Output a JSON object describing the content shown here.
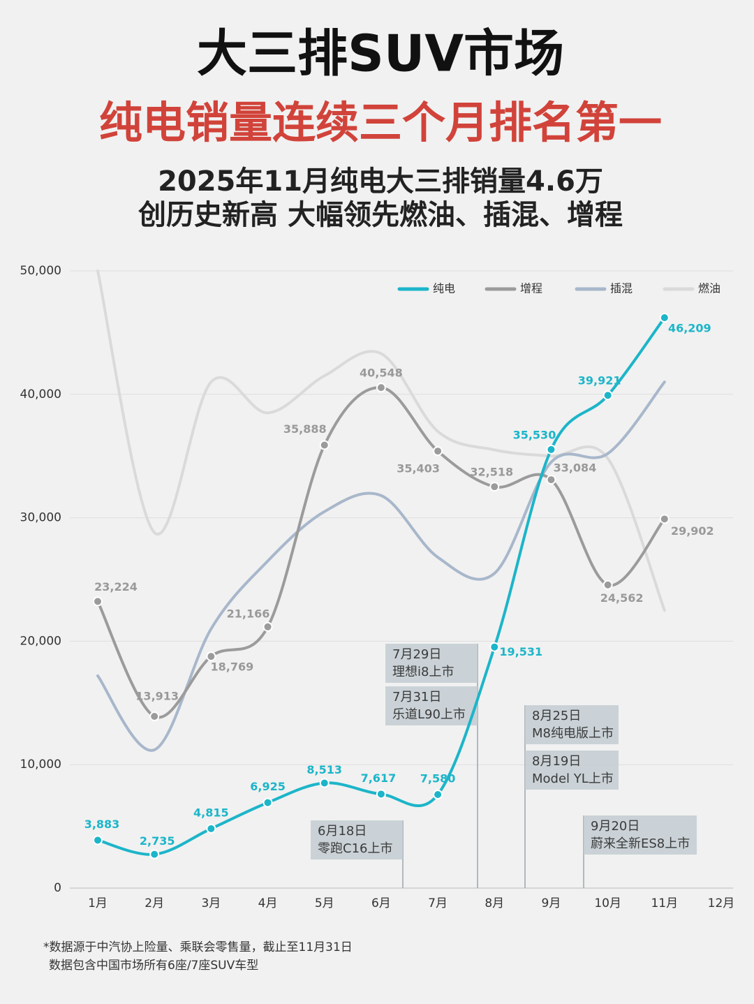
{
  "chart_data": {
    "type": "line",
    "title": "大三排SUV市场",
    "subtitle": "纯电销量连续三个月排名第一",
    "description": [
      "2025年11月纯电大三排销量4.6万",
      "创历史新高 大幅领先燃油、插混、增程"
    ],
    "categories": [
      "1月",
      "2月",
      "3月",
      "4月",
      "5月",
      "6月",
      "7月",
      "8月",
      "9月",
      "10月",
      "11月",
      "12月"
    ],
    "ylim": [
      0,
      50000
    ],
    "yticks": [
      0,
      {
        "value": 10000,
        "label": "10,000"
      },
      {
        "value": 20000,
        "label": "20,000"
      },
      {
        "value": 30000,
        "label": "30,000"
      },
      {
        "value": 40000,
        "label": "40,000"
      },
      {
        "value": 50000,
        "label": "50,000"
      }
    ],
    "grid": true,
    "legend": "top-right",
    "series": [
      {
        "name": "纯电",
        "color": "#1cb5c9",
        "values": [
          3883,
          2735,
          4815,
          6925,
          8513,
          7617,
          7580,
          19531,
          35530,
          39921,
          46209,
          null
        ],
        "value_labels": [
          "3,883",
          "2,735",
          "4,815",
          "6,925",
          "8,513",
          "7,617",
          "7,580",
          "19,531",
          "35,530",
          "39,921",
          "46,209",
          null
        ]
      },
      {
        "name": "增程",
        "color": "#9b9b9b",
        "values": [
          23224,
          13913,
          18769,
          21166,
          35888,
          40548,
          35403,
          32518,
          33084,
          24562,
          29902,
          null
        ],
        "value_labels": [
          "23,224",
          "13,913",
          "18,769",
          "21,166",
          "35,888",
          "40,548",
          "35,403",
          "32,518",
          "33,084",
          "24,562",
          "29,902",
          null
        ]
      },
      {
        "name": "插混",
        "color": "#a8b7cb",
        "values": [
          17200,
          11200,
          21000,
          26500,
          30500,
          31800,
          26800,
          25500,
          34500,
          35200,
          41000,
          null
        ]
      },
      {
        "name": "燃油",
        "color": "#dadada",
        "values": [
          50000,
          28800,
          41000,
          38500,
          41500,
          43300,
          37000,
          35500,
          35000,
          34800,
          22500,
          null
        ]
      }
    ],
    "annotations": [
      {
        "lines": [
          "6月18日",
          "零跑C16上市"
        ]
      },
      {
        "lines": [
          "7月29日",
          "理想i8上市"
        ]
      },
      {
        "lines": [
          "7月31日",
          "乐道L90上市"
        ]
      },
      {
        "lines": [
          "8月25日",
          "M8纯电版上市"
        ]
      },
      {
        "lines": [
          "8月19日",
          "Model YL上市"
        ]
      },
      {
        "lines": [
          "9月20日",
          "蔚来全新ES8上市"
        ]
      }
    ],
    "footnote": [
      "*数据源于中汽协上险量、乘联会零售量，截止至11月31日",
      "数据包含中国市场所有6座/7座SUV车型"
    ]
  }
}
